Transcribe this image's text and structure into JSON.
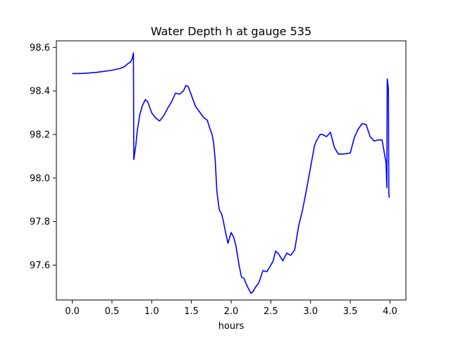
{
  "chart_data": {
    "type": "line",
    "title": "Water Depth h at gauge 535",
    "xlabel": "hours",
    "ylabel": "",
    "xlim": [
      -0.2,
      4.2
    ],
    "ylim": [
      97.44,
      98.63
    ],
    "xticks": [
      0.0,
      0.5,
      1.0,
      1.5,
      2.0,
      2.5,
      3.0,
      3.5,
      4.0
    ],
    "xtick_labels": [
      "0.0",
      "0.5",
      "1.0",
      "1.5",
      "2.0",
      "2.5",
      "3.0",
      "3.5",
      "4.0"
    ],
    "yticks": [
      97.6,
      97.8,
      98.0,
      98.2,
      98.4,
      98.6
    ],
    "ytick_labels": [
      "97.6",
      "97.8",
      "98.0",
      "98.2",
      "98.4",
      "98.6"
    ],
    "grid": false,
    "series": [
      {
        "color": "#0000ff",
        "x": [
          0.0,
          0.1,
          0.2,
          0.3,
          0.4,
          0.5,
          0.6,
          0.65,
          0.7,
          0.74,
          0.76,
          0.77,
          0.775,
          0.8,
          0.82,
          0.85,
          0.88,
          0.92,
          0.95,
          0.98,
          1.0,
          1.05,
          1.1,
          1.15,
          1.2,
          1.25,
          1.3,
          1.35,
          1.4,
          1.43,
          1.46,
          1.5,
          1.55,
          1.6,
          1.65,
          1.7,
          1.73,
          1.76,
          1.78,
          1.8,
          1.82,
          1.85,
          1.88,
          1.9,
          1.93,
          1.96,
          2.0,
          2.03,
          2.06,
          2.1,
          2.13,
          2.16,
          2.2,
          2.25,
          2.28,
          2.3,
          2.35,
          2.4,
          2.45,
          2.5,
          2.53,
          2.56,
          2.6,
          2.65,
          2.7,
          2.75,
          2.8,
          2.85,
          2.9,
          2.95,
          3.0,
          3.05,
          3.08,
          3.12,
          3.15,
          3.2,
          3.25,
          3.3,
          3.35,
          3.4,
          3.45,
          3.5,
          3.55,
          3.6,
          3.65,
          3.7,
          3.75,
          3.8,
          3.85,
          3.9,
          3.95,
          3.96,
          3.965,
          3.98,
          3.985,
          3.99
        ],
        "y": [
          98.48,
          98.48,
          98.482,
          98.485,
          98.49,
          98.495,
          98.503,
          98.51,
          98.525,
          98.535,
          98.555,
          98.575,
          98.085,
          98.15,
          98.22,
          98.29,
          98.33,
          98.36,
          98.35,
          98.32,
          98.3,
          98.275,
          98.262,
          98.285,
          98.32,
          98.35,
          98.39,
          98.385,
          98.4,
          98.425,
          98.42,
          98.38,
          98.33,
          98.305,
          98.28,
          98.265,
          98.23,
          98.2,
          98.16,
          98.08,
          97.94,
          97.855,
          97.835,
          97.805,
          97.75,
          97.7,
          97.75,
          97.73,
          97.69,
          97.6,
          97.545,
          97.54,
          97.505,
          97.47,
          97.48,
          97.495,
          97.52,
          97.575,
          97.57,
          97.6,
          97.62,
          97.665,
          97.65,
          97.62,
          97.655,
          97.645,
          97.67,
          97.78,
          97.855,
          97.95,
          98.05,
          98.15,
          98.175,
          98.2,
          98.2,
          98.19,
          98.21,
          98.14,
          98.11,
          98.11,
          98.112,
          98.115,
          98.185,
          98.225,
          98.25,
          98.245,
          98.19,
          98.17,
          98.175,
          98.175,
          98.07,
          97.955,
          98.455,
          98.41,
          97.935,
          97.91
        ]
      }
    ]
  }
}
